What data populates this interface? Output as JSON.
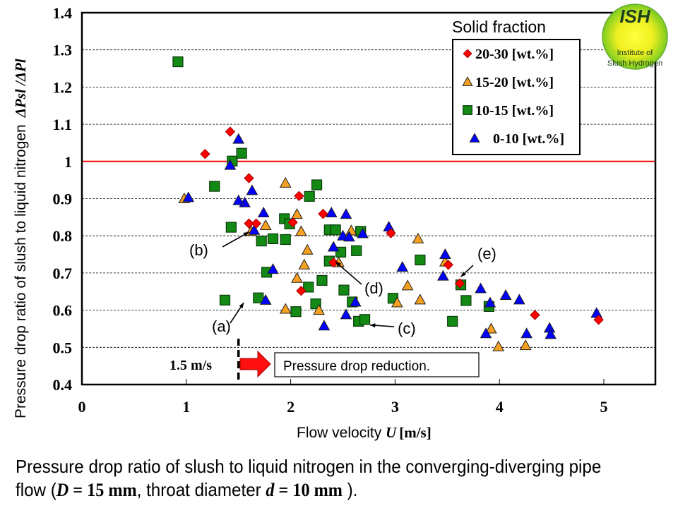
{
  "chart_data": {
    "type": "scatter",
    "title": "",
    "xlabel": "Flow velocity",
    "xlabel_symbol": "U",
    "xlabel_unit": "[m/s]",
    "ylabel": "Pressure drop ratio of slush to liquid nitrogen",
    "ylabel_symbol": "ΔPsl /ΔPl",
    "xlim": [
      0,
      5.5
    ],
    "ylim": [
      0.4,
      1.4
    ],
    "x_ticks": [
      0,
      1,
      2,
      3,
      4,
      5
    ],
    "x_tick_labels": [
      "0",
      "1",
      "2",
      "3",
      "4",
      "5"
    ],
    "y_ticks": [
      0.4,
      0.5,
      0.6,
      0.7,
      0.8,
      0.9,
      1.0,
      1.1,
      1.2,
      1.3,
      1.4
    ],
    "y_tick_labels": [
      "0.4",
      "0.5",
      "0.6",
      "0.7",
      "0.8",
      "0.9",
      "1",
      "1.1",
      "1.2",
      "1.3",
      "1.4"
    ],
    "grid": "horizontal-dashed",
    "reference_line": {
      "y": 1.0,
      "color": "#ff0000"
    },
    "legend": {
      "title": "Solid fraction",
      "placement": "top-right"
    },
    "series": [
      {
        "name": "20-30 [wt.%]",
        "marker": "diamond",
        "color": "#ff0000",
        "points": [
          [
            1.18,
            1.02
          ],
          [
            1.42,
            1.08
          ],
          [
            1.6,
            0.955
          ],
          [
            1.6,
            0.833
          ],
          [
            1.67,
            0.833
          ],
          [
            2.08,
            0.907
          ],
          [
            2.31,
            0.859
          ],
          [
            2.02,
            0.836
          ],
          [
            2.41,
            0.728
          ],
          [
            2.1,
            0.652
          ],
          [
            2.96,
            0.807
          ],
          [
            3.51,
            0.722
          ],
          [
            3.62,
            0.672
          ],
          [
            4.34,
            0.587
          ],
          [
            4.95,
            0.574
          ]
        ]
      },
      {
        "name": "15-20 [wt.%]",
        "marker": "triangle",
        "color": "#f5a020",
        "points": [
          [
            0.98,
            0.9
          ],
          [
            1.62,
            0.812
          ],
          [
            1.76,
            0.828
          ],
          [
            1.95,
            0.942
          ],
          [
            2.06,
            0.858
          ],
          [
            2.1,
            0.812
          ],
          [
            2.16,
            0.762
          ],
          [
            2.13,
            0.722
          ],
          [
            2.06,
            0.686
          ],
          [
            1.95,
            0.603
          ],
          [
            2.27,
            0.6
          ],
          [
            2.46,
            0.728
          ],
          [
            2.58,
            0.814
          ],
          [
            3.12,
            0.666
          ],
          [
            3.02,
            0.62
          ],
          [
            3.22,
            0.792
          ],
          [
            3.24,
            0.628
          ],
          [
            3.48,
            0.73
          ],
          [
            3.92,
            0.55
          ],
          [
            3.99,
            0.502
          ],
          [
            4.25,
            0.505
          ]
        ]
      },
      {
        "name": "10-15 [wt.%]",
        "marker": "square",
        "color": "#138a13",
        "points": [
          [
            0.92,
            1.268
          ],
          [
            1.27,
            0.933
          ],
          [
            1.44,
            1.001
          ],
          [
            1.53,
            1.022
          ],
          [
            1.43,
            0.823
          ],
          [
            1.72,
            0.786
          ],
          [
            1.83,
            0.792
          ],
          [
            1.94,
            0.846
          ],
          [
            1.95,
            0.79
          ],
          [
            1.99,
            0.832
          ],
          [
            2.18,
            0.906
          ],
          [
            2.25,
            0.937
          ],
          [
            2.37,
            0.816
          ],
          [
            2.43,
            0.816
          ],
          [
            2.48,
            0.756
          ],
          [
            2.63,
            0.76
          ],
          [
            2.67,
            0.812
          ],
          [
            1.77,
            0.702
          ],
          [
            2.17,
            0.662
          ],
          [
            2.3,
            0.68
          ],
          [
            2.37,
            0.732
          ],
          [
            1.69,
            0.633
          ],
          [
            1.37,
            0.627
          ],
          [
            2.05,
            0.596
          ],
          [
            2.24,
            0.617
          ],
          [
            2.51,
            0.654
          ],
          [
            2.59,
            0.622
          ],
          [
            2.65,
            0.57
          ],
          [
            2.71,
            0.575
          ],
          [
            2.98,
            0.632
          ],
          [
            3.24,
            0.735
          ],
          [
            3.55,
            0.57
          ],
          [
            3.63,
            0.668
          ],
          [
            3.68,
            0.626
          ],
          [
            3.9,
            0.61
          ]
        ]
      },
      {
        "name": "0-10 [wt.%]",
        "marker": "triangle",
        "color": "#0000ff",
        "points": [
          [
            1.02,
            0.903
          ],
          [
            1.42,
            0.99
          ],
          [
            1.5,
            1.06
          ],
          [
            1.56,
            0.889
          ],
          [
            1.5,
            0.895
          ],
          [
            1.63,
            0.922
          ],
          [
            1.74,
            0.862
          ],
          [
            1.65,
            0.815
          ],
          [
            1.83,
            0.71
          ],
          [
            1.76,
            0.627
          ],
          [
            2.32,
            0.558
          ],
          [
            2.39,
            0.862
          ],
          [
            2.41,
            0.77
          ],
          [
            2.5,
            0.8
          ],
          [
            2.53,
            0.858
          ],
          [
            2.56,
            0.797
          ],
          [
            2.69,
            0.806
          ],
          [
            2.94,
            0.824
          ],
          [
            3.07,
            0.716
          ],
          [
            3.46,
            0.692
          ],
          [
            3.48,
            0.75
          ],
          [
            2.53,
            0.588
          ],
          [
            2.62,
            0.622
          ],
          [
            3.82,
            0.658
          ],
          [
            3.91,
            0.62
          ],
          [
            4.06,
            0.64
          ],
          [
            4.19,
            0.628
          ],
          [
            3.87,
            0.537
          ],
          [
            4.26,
            0.537
          ],
          [
            4.48,
            0.552
          ],
          [
            4.49,
            0.535
          ],
          [
            4.93,
            0.592
          ]
        ]
      }
    ],
    "annotations": [
      {
        "label": "(a)",
        "target": [
          1.55,
          0.62
        ]
      },
      {
        "label": "(b)",
        "target": [
          1.6,
          0.81
        ]
      },
      {
        "label": "(c)",
        "target": [
          2.76,
          0.56
        ]
      },
      {
        "label": "(d)",
        "target": [
          2.43,
          0.73
        ]
      },
      {
        "label": "(e)",
        "target": [
          3.63,
          0.69
        ]
      }
    ],
    "threshold_line": {
      "x": 1.5,
      "label": "1.5 m/s"
    },
    "threshold_note": "Pressure drop reduction."
  },
  "logo": {
    "title": "ISH",
    "line1": "Institute of",
    "line2": "Slush Hydrogen"
  },
  "caption": {
    "part1": "Pressure drop ratio of slush to liquid nitrogen in the converging-diverging pipe flow (",
    "D_symbol": "D",
    "D_value": " = 15 mm",
    "part2": ", throat diameter ",
    "d_symbol": "d",
    "d_value": " = 10 mm",
    "part3": " )."
  }
}
